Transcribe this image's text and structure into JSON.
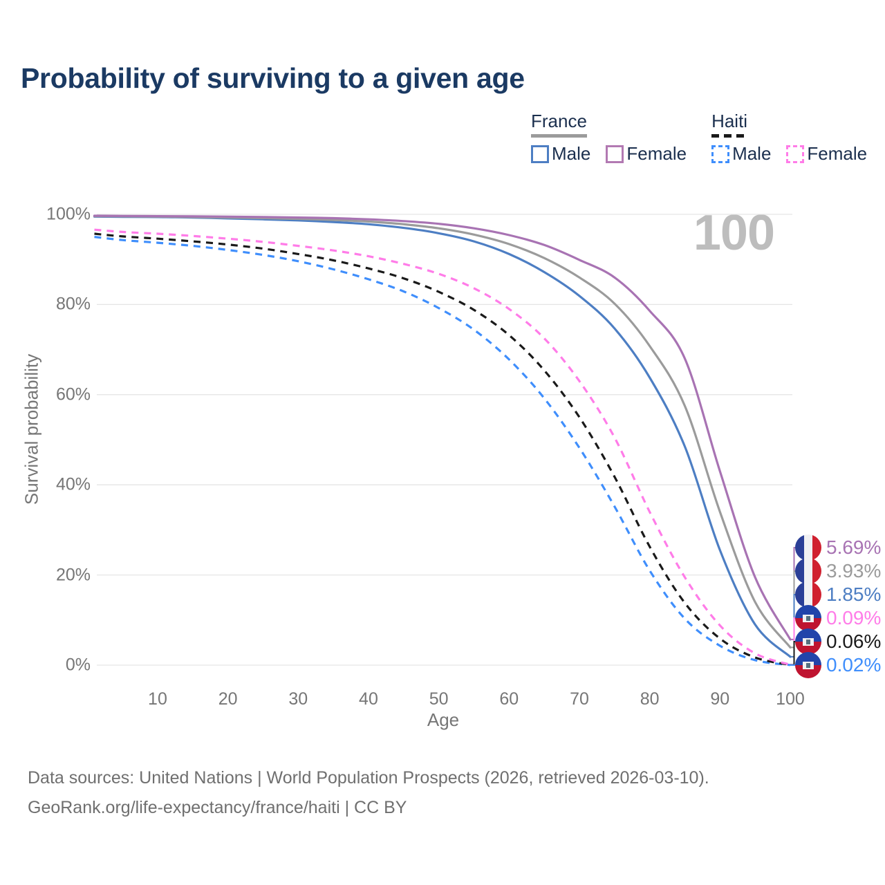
{
  "title": "Probability of surviving to a given age",
  "watermark": "100",
  "legend": {
    "groups": [
      {
        "name": "France",
        "underline_color": "#9b9b9b",
        "underline_dashed": false,
        "items": [
          {
            "label": "Male",
            "color": "#4d7ec3",
            "dashed": false
          },
          {
            "label": "Female",
            "color": "#b279b2",
            "dashed": false
          }
        ]
      },
      {
        "name": "Haiti",
        "underline_color": "#1a1a1a",
        "underline_dashed": true,
        "items": [
          {
            "label": "Male",
            "color": "#3f8efc",
            "dashed": true
          },
          {
            "label": "Female",
            "color": "#ff7ce8",
            "dashed": true
          }
        ]
      }
    ]
  },
  "flags": {
    "france": {
      "blue": "#2b3f97",
      "white": "#f1f1f3",
      "red": "#d0202f"
    },
    "haiti": {
      "blue": "#2244aa",
      "red": "#bf1430",
      "emblem_bg": "#f1f1f3"
    }
  },
  "chart_data": {
    "type": "line",
    "title": "Probability of surviving to a given age",
    "xlabel": "Age",
    "ylabel": "Survival probability",
    "xlim": [
      0,
      100
    ],
    "ylim": [
      0,
      100
    ],
    "grid": "horizontal",
    "legend_position": "top-right",
    "x_ticks": [
      "10",
      "20",
      "30",
      "40",
      "50",
      "60",
      "70",
      "80",
      "90",
      "100"
    ],
    "y_ticks": [
      "0%",
      "20%",
      "40%",
      "60%",
      "80%",
      "100%"
    ],
    "ages": [
      1,
      5,
      10,
      15,
      20,
      25,
      30,
      35,
      40,
      45,
      50,
      55,
      60,
      65,
      70,
      75,
      80,
      85,
      90,
      95,
      100
    ],
    "series": [
      {
        "id": "haiti_male",
        "name": "Haiti Male",
        "country": "Haiti",
        "sex": "Male",
        "color": "#3f8efc",
        "dashed": true,
        "flag": "haiti",
        "end_label": "0.02%",
        "values": [
          95.0,
          94.3,
          93.7,
          93.0,
          92.1,
          91.0,
          89.6,
          87.8,
          85.6,
          82.9,
          79.2,
          74.4,
          67.8,
          59.2,
          48.2,
          35.2,
          21.0,
          10.3,
          4.3,
          1.1,
          0.02
        ]
      },
      {
        "id": "haiti_total",
        "name": "Haiti Total",
        "country": "Haiti",
        "sex": "Both",
        "color": "#1a1a1a",
        "dashed": true,
        "flag": "haiti",
        "end_label": "0.06%",
        "values": [
          95.7,
          95.1,
          94.6,
          94.0,
          93.3,
          92.4,
          91.2,
          89.8,
          88.0,
          85.8,
          82.8,
          78.8,
          73.2,
          65.4,
          55.0,
          41.8,
          26.3,
          13.8,
          5.9,
          1.7,
          0.06
        ]
      },
      {
        "id": "haiti_female",
        "name": "Haiti Female",
        "country": "Haiti",
        "sex": "Female",
        "color": "#ff7ce8",
        "dashed": true,
        "flag": "haiti",
        "end_label": "0.09%",
        "values": [
          96.6,
          96.1,
          95.7,
          95.2,
          94.6,
          93.9,
          93.0,
          92.0,
          90.7,
          89.0,
          86.8,
          83.6,
          79.0,
          72.5,
          63.0,
          50.5,
          34.0,
          19.5,
          8.8,
          2.6,
          0.09
        ]
      },
      {
        "id": "france_male",
        "name": "France Male",
        "country": "France",
        "sex": "Male",
        "color": "#4d7ec3",
        "dashed": false,
        "flag": "france",
        "end_label": "1.85%",
        "values": [
          99.5,
          99.45,
          99.4,
          99.3,
          99.1,
          98.9,
          98.65,
          98.3,
          97.8,
          97.0,
          95.8,
          94.0,
          91.2,
          87.2,
          81.9,
          74.7,
          63.8,
          48.5,
          25.5,
          9.0,
          1.85
        ]
      },
      {
        "id": "france_total",
        "name": "France Total",
        "country": "France",
        "sex": "Both",
        "color": "#9b9b9b",
        "dashed": false,
        "flag": "france",
        "end_label": "3.93%",
        "values": [
          99.6,
          99.55,
          99.5,
          99.4,
          99.3,
          99.15,
          99.0,
          98.75,
          98.4,
          97.8,
          96.9,
          95.5,
          93.4,
          90.3,
          86.0,
          80.2,
          70.8,
          57.5,
          34.0,
          14.0,
          3.93
        ]
      },
      {
        "id": "france_female",
        "name": "France Female",
        "country": "France",
        "sex": "Female",
        "color": "#a873b3",
        "dashed": false,
        "flag": "france",
        "end_label": "5.69%",
        "values": [
          99.7,
          99.65,
          99.6,
          99.55,
          99.5,
          99.4,
          99.3,
          99.15,
          98.9,
          98.5,
          97.9,
          96.9,
          95.4,
          93.2,
          89.9,
          86.0,
          78.6,
          68.0,
          43.0,
          19.5,
          5.69
        ]
      }
    ],
    "colors": {
      "gridline": "#e5e5e5",
      "axis_text": "#767676",
      "title_text": "#1b3a63",
      "watermark_text": "#bdbdbd",
      "footer_text": "#6f6f6f"
    }
  },
  "footer": {
    "line1": "Data sources: United Nations | World Population Prospects (2026, retrieved 2026-03-10).",
    "line2": "GeoRank.org/life-expectancy/france/haiti | CC BY"
  }
}
